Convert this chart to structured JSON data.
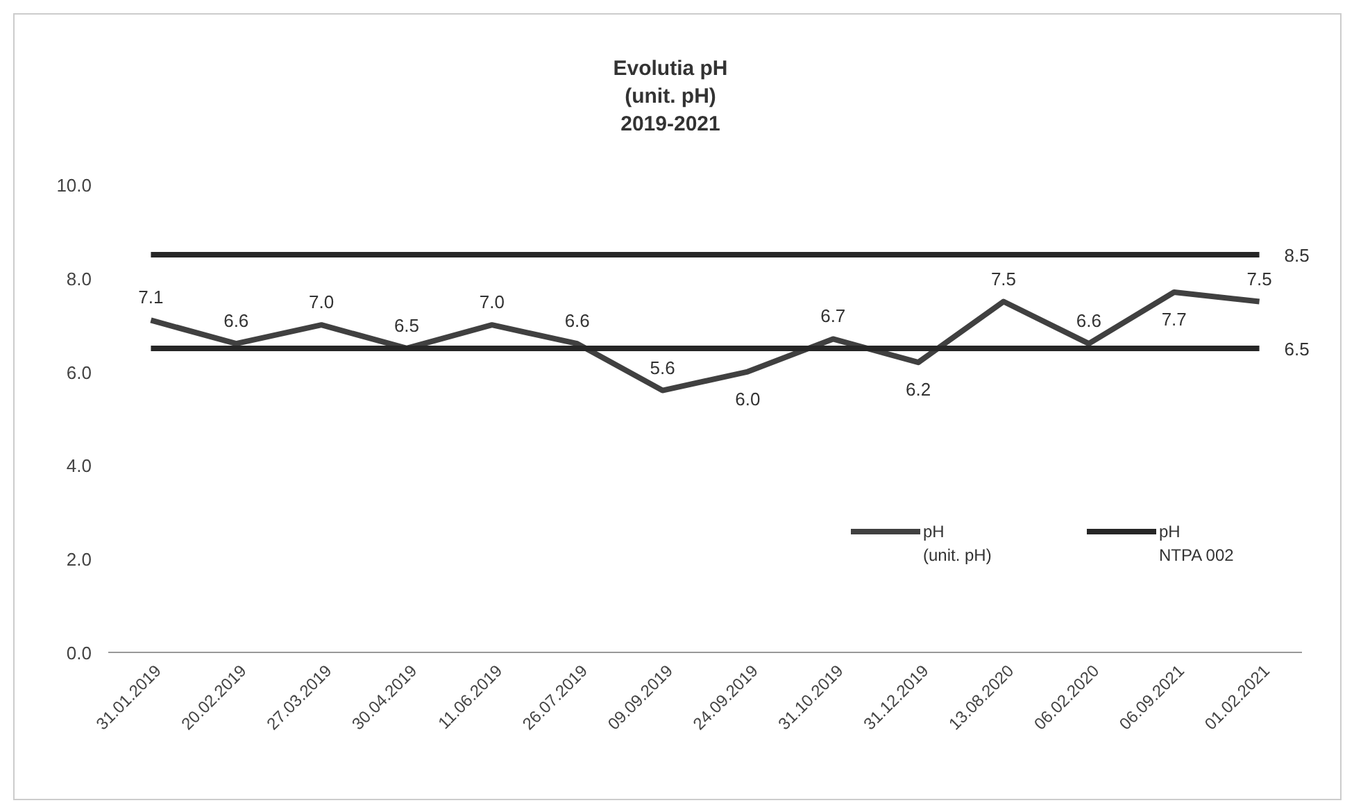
{
  "chart_data": {
    "type": "line",
    "title": "Evolutia pH\n(unit. pH)\n2019-2021",
    "categories": [
      "31.01.2019",
      "20.02.2019",
      "27.03.2019",
      "30.04.2019",
      "11.06.2019",
      "26.07.2019",
      "09.09.2019",
      "24.09.2019",
      "31.10.2019",
      "31.12.2019",
      "13.08.2020",
      "06.02.2020",
      "06.09.2021",
      "01.02.2021"
    ],
    "series": [
      {
        "name": "pH (unit. pH)",
        "color": "#404040",
        "values": [
          7.1,
          6.6,
          7.0,
          6.5,
          7.0,
          6.6,
          5.6,
          6.0,
          6.7,
          6.2,
          7.5,
          6.6,
          7.7,
          7.5
        ],
        "value_labels": [
          "7.1",
          "6.6",
          "7.0",
          "6.5",
          "7.0",
          "6.6",
          "5.6",
          "6.0",
          "6.7",
          "6.2",
          "7.5",
          "6.6",
          "7.7",
          "7.5"
        ]
      },
      {
        "name": "pH NTPA 002",
        "color": "#262626",
        "values": [
          8.5,
          8.5,
          8.5,
          8.5,
          8.5,
          8.5,
          8.5,
          8.5,
          8.5,
          8.5,
          8.5,
          8.5,
          8.5,
          8.5
        ],
        "value_labels": [
          null,
          null,
          null,
          null,
          null,
          null,
          null,
          null,
          null,
          null,
          null,
          null,
          null,
          "8.5"
        ]
      },
      {
        "color": "#262626",
        "values": [
          6.5,
          6.5,
          6.5,
          6.5,
          6.5,
          6.5,
          6.5,
          6.5,
          6.5,
          6.5,
          6.5,
          6.5,
          6.5,
          6.5
        ],
        "value_labels": [
          null,
          null,
          null,
          null,
          null,
          null,
          null,
          null,
          null,
          null,
          null,
          null,
          null,
          "6.5"
        ]
      }
    ],
    "ylim": [
      0,
      10
    ],
    "yticks": [
      {
        "value": 0,
        "label": "0.0"
      },
      {
        "value": 2,
        "label": "2.0"
      },
      {
        "value": 4,
        "label": "4.0"
      },
      {
        "value": 6,
        "label": "6.0"
      },
      {
        "value": 8,
        "label": "8.0"
      },
      {
        "value": 10,
        "label": "10.0"
      }
    ],
    "legend": "bottom right",
    "grid": false,
    "marker": "none",
    "line_style": "solid"
  }
}
